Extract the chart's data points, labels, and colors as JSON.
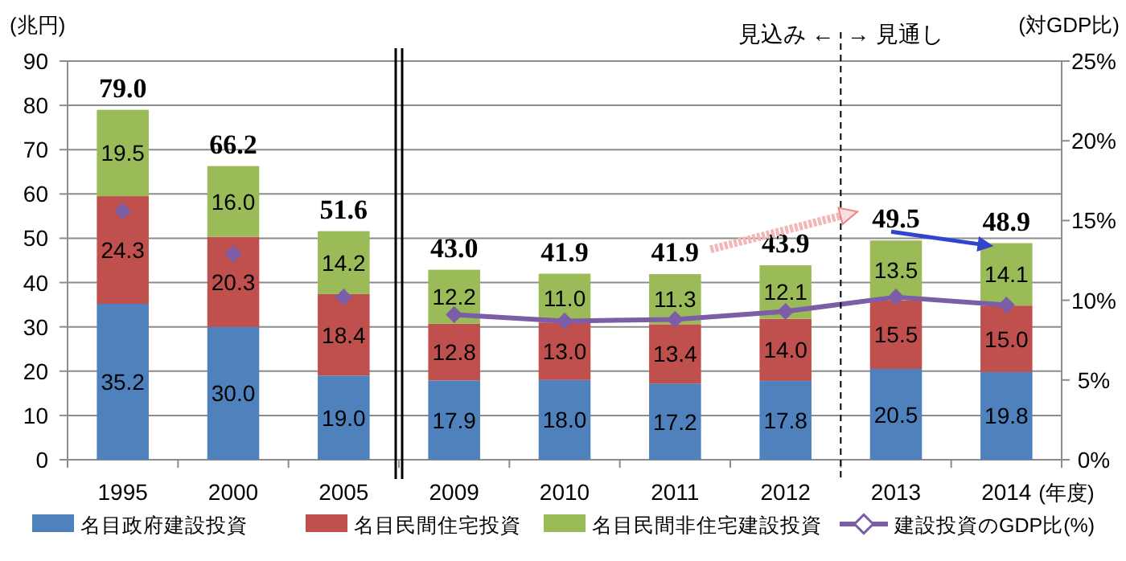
{
  "chart_data": {
    "type": "bar",
    "stacked": true,
    "categories": [
      "1995",
      "2000",
      "2005",
      "2009",
      "2010",
      "2011",
      "2012",
      "2013",
      "2014"
    ],
    "xlabel": "(年度)",
    "ylabel": "(兆円)",
    "y2label": "(対GDP比)",
    "series": [
      {
        "name": "名目政府建設投資",
        "color": "#4f81bd",
        "values": [
          35.2,
          30.0,
          19.0,
          17.9,
          18.0,
          17.2,
          17.8,
          20.5,
          19.8
        ],
        "value_labels": [
          "35.2",
          "30.0",
          "19.0",
          "17.9",
          "18.0",
          "17.2",
          "17.8",
          "20.5",
          "19.8"
        ]
      },
      {
        "name": "名目民間住宅投資",
        "color": "#c0504d",
        "values": [
          24.3,
          20.3,
          18.4,
          12.8,
          13.0,
          13.4,
          14.0,
          15.5,
          15.0
        ],
        "value_labels": [
          "24.3",
          "20.3",
          "18.4",
          "12.8",
          "13.0",
          "13.4",
          "14.0",
          "15.5",
          "15.0"
        ]
      },
      {
        "name": "名目民間非住宅建設投資",
        "color": "#9bbb59",
        "values": [
          19.5,
          16.0,
          14.2,
          12.2,
          11.0,
          11.3,
          12.1,
          13.5,
          14.1
        ],
        "value_labels": [
          "19.5",
          "16.0",
          "14.2",
          "12.2",
          "11.0",
          "11.3",
          "12.1",
          "13.5",
          "14.1"
        ]
      },
      {
        "name": "建設投資のGDP比(%)",
        "type": "line",
        "axis": "y2",
        "color": "#7b5ea7",
        "marker": "diamond",
        "values": [
          null,
          null,
          null,
          9.1,
          8.7,
          8.8,
          9.3,
          10.2,
          9.7
        ]
      },
      {
        "type": "scatter",
        "axis": "y2",
        "color": "#7b5ea7",
        "marker": "diamond",
        "values": [
          15.6,
          12.9,
          10.2,
          null,
          null,
          null,
          null,
          null,
          null
        ]
      }
    ],
    "totals": [
      "79.0",
      "66.2",
      "51.6",
      "43.0",
      "41.9",
      "41.9",
      "43.9",
      "49.5",
      "48.9"
    ],
    "ylim": [
      0,
      90
    ],
    "yticks": [
      0,
      10,
      20,
      30,
      40,
      50,
      60,
      70,
      80,
      90
    ],
    "y2lim": [
      0,
      25
    ],
    "y2ticks": [
      {
        "value": 0,
        "label": "0%"
      },
      {
        "value": 5,
        "label": "5%"
      },
      {
        "value": 10,
        "label": "10%"
      },
      {
        "value": 15,
        "label": "15%"
      },
      {
        "value": 20,
        "label": "20%"
      },
      {
        "value": 25,
        "label": "25%"
      }
    ],
    "annotations": [
      "見込み ←",
      "→ 見通し"
    ],
    "grid": "y",
    "legend": "bottom"
  }
}
